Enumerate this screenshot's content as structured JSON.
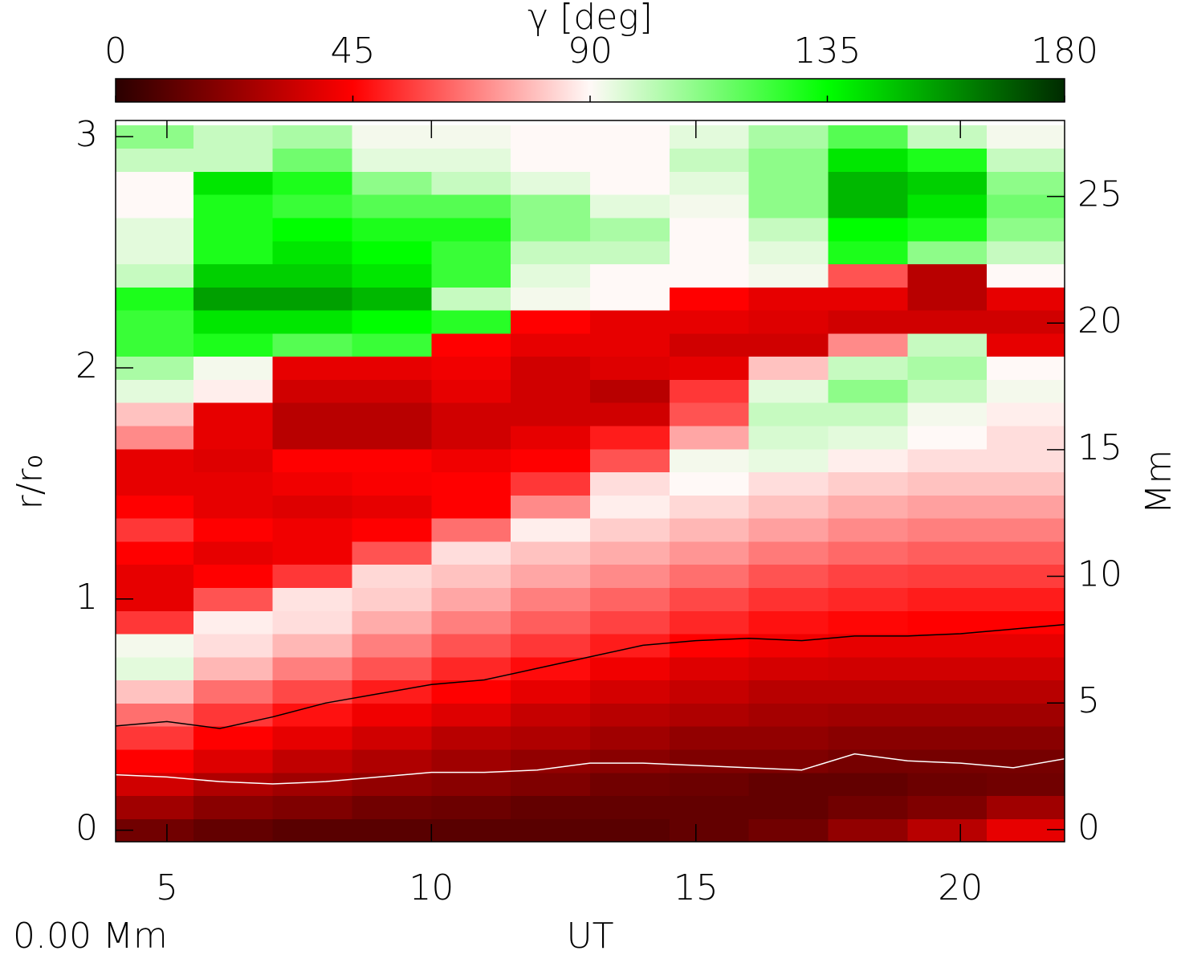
{
  "chart_data": {
    "type": "heatmap",
    "colorbar_label": "γ [deg]",
    "colorbar_lim": [
      0,
      180
    ],
    "colorbar_ticks": [
      0,
      45,
      90,
      135,
      180
    ],
    "colormap": [
      {
        "value": 0,
        "color": "#2a0000"
      },
      {
        "value": 45,
        "color": "#ff0000"
      },
      {
        "value": 90,
        "color": "#fff9f7"
      },
      {
        "value": 135,
        "color": "#00ff00"
      },
      {
        "value": 180,
        "color": "#002a00"
      }
    ],
    "xlabel": "UT",
    "ylabel": "r/r₀",
    "y2label": "Mm",
    "annotation": "0.00 Mm",
    "xlim": [
      4.03,
      21.97
    ],
    "xticks": [
      5,
      10,
      15,
      20
    ],
    "ylim": [
      -0.05,
      3.07
    ],
    "yticks": [
      0,
      1,
      2,
      3
    ],
    "y2lim": [
      -0.48,
      28.0
    ],
    "y2ticks": [
      0,
      5,
      10,
      15,
      20,
      25
    ],
    "xbins": [
      4,
      5.5,
      7,
      8.5,
      10,
      11.5,
      13,
      14.5,
      16,
      17.5,
      19,
      20.5,
      22
    ],
    "ybins": [
      -0.05,
      0.05,
      0.15,
      0.25,
      0.35,
      0.45,
      0.55,
      0.65,
      0.75,
      0.85,
      0.95,
      1.05,
      1.15,
      1.25,
      1.35,
      1.45,
      1.55,
      1.65,
      1.75,
      1.85,
      1.95,
      2.05,
      2.15,
      2.25,
      2.35,
      2.45,
      2.55,
      2.65,
      2.75,
      2.85,
      2.95,
      3.05
    ],
    "values": [
      [
        15,
        12,
        10,
        10,
        10,
        10,
        10,
        12,
        15,
        22,
        30,
        40
      ],
      [
        25,
        20,
        18,
        15,
        14,
        12,
        12,
        12,
        12,
        15,
        18,
        25
      ],
      [
        35,
        28,
        25,
        22,
        20,
        18,
        15,
        14,
        12,
        12,
        14,
        15
      ],
      [
        45,
        38,
        32,
        28,
        25,
        22,
        20,
        18,
        18,
        16,
        16,
        16
      ],
      [
        55,
        45,
        40,
        35,
        30,
        28,
        25,
        22,
        22,
        20,
        20,
        20
      ],
      [
        65,
        55,
        48,
        42,
        38,
        33,
        30,
        28,
        26,
        25,
        25,
        25
      ],
      [
        80,
        65,
        58,
        50,
        45,
        40,
        36,
        33,
        30,
        30,
        30,
        30
      ],
      [
        95,
        78,
        68,
        60,
        52,
        47,
        42,
        38,
        36,
        35,
        35,
        35
      ],
      [
        92,
        85,
        78,
        68,
        60,
        55,
        50,
        45,
        42,
        40,
        40,
        40
      ],
      [
        55,
        88,
        85,
        76,
        68,
        62,
        57,
        52,
        48,
        46,
        45,
        45
      ],
      [
        40,
        60,
        86,
        82,
        75,
        68,
        63,
        58,
        54,
        52,
        50,
        50
      ],
      [
        40,
        45,
        55,
        84,
        80,
        75,
        70,
        65,
        60,
        57,
        56,
        56
      ],
      [
        45,
        40,
        42,
        60,
        85,
        80,
        76,
        72,
        67,
        64,
        62,
        62
      ],
      [
        55,
        45,
        42,
        45,
        65,
        88,
        82,
        78,
        74,
        70,
        68,
        68
      ],
      [
        45,
        40,
        38,
        40,
        45,
        70,
        88,
        84,
        80,
        76,
        74,
        74
      ],
      [
        40,
        40,
        42,
        44,
        45,
        55,
        85,
        90,
        85,
        82,
        80,
        80
      ],
      [
        40,
        38,
        45,
        45,
        42,
        45,
        60,
        92,
        94,
        88,
        85,
        85
      ],
      [
        70,
        40,
        30,
        30,
        35,
        40,
        50,
        75,
        97,
        95,
        90,
        85
      ],
      [
        80,
        40,
        30,
        30,
        35,
        35,
        35,
        60,
        100,
        100,
        92,
        88
      ],
      [
        95,
        88,
        35,
        35,
        40,
        35,
        30,
        55,
        95,
        110,
        100,
        92
      ],
      [
        105,
        92,
        40,
        40,
        42,
        35,
        38,
        40,
        80,
        100,
        105,
        90
      ],
      [
        125,
        130,
        120,
        125,
        45,
        40,
        40,
        35,
        35,
        70,
        100,
        40
      ],
      [
        125,
        140,
        140,
        135,
        128,
        45,
        40,
        40,
        38,
        35,
        35,
        35
      ],
      [
        130,
        155,
        155,
        150,
        100,
        92,
        90,
        45,
        40,
        40,
        30,
        40
      ],
      [
        100,
        145,
        145,
        140,
        125,
        95,
        90,
        90,
        92,
        60,
        30,
        90
      ],
      [
        95,
        130,
        140,
        135,
        125,
        100,
        100,
        90,
        95,
        130,
        110,
        100
      ],
      [
        95,
        130,
        135,
        130,
        130,
        110,
        105,
        90,
        100,
        135,
        130,
        110
      ],
      [
        90,
        130,
        125,
        120,
        120,
        110,
        95,
        92,
        110,
        150,
        140,
        115
      ],
      [
        90,
        140,
        130,
        110,
        100,
        95,
        90,
        95,
        110,
        150,
        145,
        110
      ],
      [
        100,
        100,
        115,
        95,
        95,
        90,
        90,
        100,
        110,
        140,
        130,
        100
      ],
      [
        110,
        100,
        105,
        92,
        92,
        90,
        90,
        95,
        105,
        120,
        100,
        92
      ]
    ],
    "contours": [
      {
        "color": "#000000",
        "x": [
          4,
          5,
          6,
          7,
          8,
          9,
          10,
          11,
          12,
          13,
          14,
          15,
          16,
          17,
          18,
          19,
          20,
          21,
          22
        ],
        "values": [
          0.45,
          0.47,
          0.44,
          0.49,
          0.55,
          0.59,
          0.63,
          0.65,
          0.7,
          0.75,
          0.8,
          0.82,
          0.83,
          0.82,
          0.84,
          0.84,
          0.85,
          0.87,
          0.89
        ]
      },
      {
        "color": "#ffffff",
        "x": [
          4,
          5,
          6,
          7,
          8,
          9,
          10,
          11,
          12,
          13,
          14,
          15,
          16,
          17,
          18,
          19,
          20,
          21,
          22
        ],
        "values": [
          0.24,
          0.23,
          0.21,
          0.2,
          0.21,
          0.23,
          0.25,
          0.25,
          0.26,
          0.29,
          0.29,
          0.28,
          0.27,
          0.26,
          0.33,
          0.3,
          0.29,
          0.27,
          0.31
        ]
      }
    ]
  }
}
